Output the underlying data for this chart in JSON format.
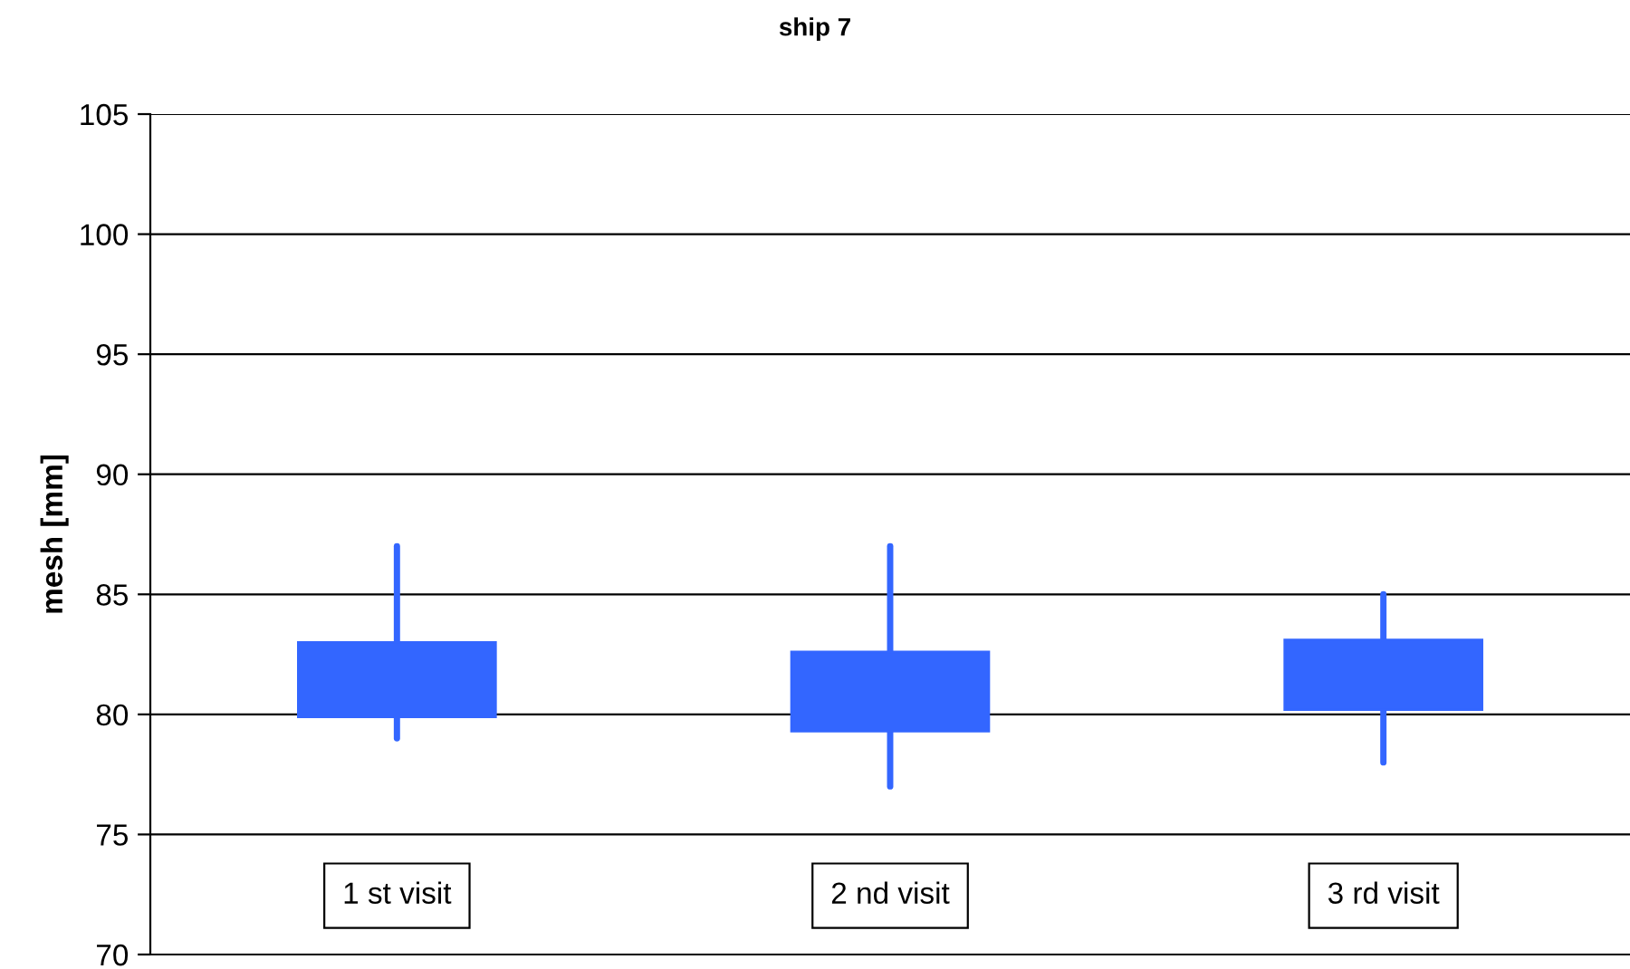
{
  "chart_data": {
    "type": "candlestick",
    "title": "ship 7",
    "ylabel": "mesh [mm]",
    "categories": [
      "1 st visit",
      "2 nd visit",
      "3 rd visit"
    ],
    "ohlc": [
      [
        79.9,
        87,
        79,
        83.0
      ],
      [
        79.3,
        87,
        77,
        82.6
      ],
      [
        80.2,
        85,
        78,
        83.1
      ]
    ],
    "color": "#3366ff",
    "ylim": [
      70,
      105
    ],
    "yticks": [
      70,
      75,
      80,
      85,
      90,
      95,
      100,
      105
    ],
    "grid": "y"
  }
}
